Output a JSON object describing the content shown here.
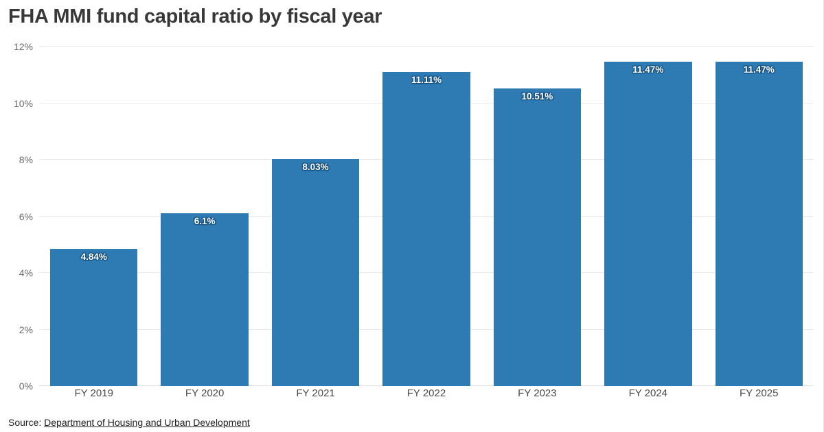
{
  "title": "FHA MMI fund capital ratio by fiscal year",
  "source": {
    "prefix": "Source: ",
    "link_text": "Department of Housing and Urban Development"
  },
  "colors": {
    "bar": "#2e7bb4",
    "bar_label_text": "#ffffff",
    "bar_label_halo": "#134c7c",
    "gridline": "#ebebeb",
    "baseline": "#dedede",
    "title_text": "#383838",
    "ytick_text": "#696969",
    "xlabel_text": "#4a4a4a"
  },
  "chart_data": {
    "type": "bar",
    "title": "FHA MMI fund capital ratio by fiscal year",
    "categories": [
      "FY 2019",
      "FY 2020",
      "FY 2021",
      "FY 2022",
      "FY 2023",
      "FY 2024",
      "FY 2025"
    ],
    "values": [
      4.84,
      6.1,
      8.03,
      11.11,
      10.51,
      11.47,
      11.47
    ],
    "value_labels": [
      "4.84%",
      "6.1%",
      "8.03%",
      "11.11%",
      "10.51%",
      "11.47%",
      "11.47%"
    ],
    "xlabel": "",
    "ylabel": "",
    "ylim": [
      0,
      12
    ],
    "ytick_values": [
      0,
      2,
      4,
      6,
      8,
      10,
      12
    ],
    "ytick_labels": [
      "0%",
      "2%",
      "4%",
      "6%",
      "8%",
      "10%",
      "12%"
    ],
    "grid": "horizontal",
    "legend_position": "none"
  }
}
